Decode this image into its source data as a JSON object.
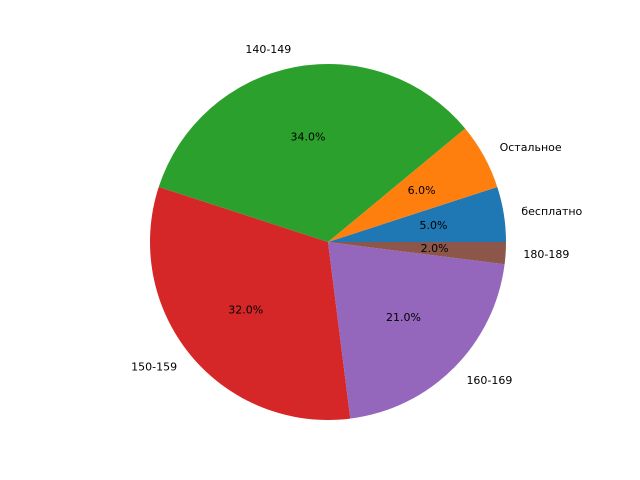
{
  "chart_data": {
    "type": "pie",
    "title": "",
    "start_angle_deg": 0,
    "direction": "counterclockwise",
    "slices": [
      {
        "label": "бесплатно",
        "value": 5.0,
        "pct_label": "5.0%",
        "color": "#1f77b4"
      },
      {
        "label": "Остальное",
        "value": 6.0,
        "pct_label": "6.0%",
        "color": "#ff7f0e"
      },
      {
        "label": "140-149",
        "value": 34.0,
        "pct_label": "34.0%",
        "color": "#2ca02c"
      },
      {
        "label": "150-159",
        "value": 32.0,
        "pct_label": "32.0%",
        "color": "#d62728"
      },
      {
        "label": "160-169",
        "value": 21.0,
        "pct_label": "21.0%",
        "color": "#9467bd"
      },
      {
        "label": "180-189",
        "value": 2.0,
        "pct_label": "2.0%",
        "color": "#8c564b"
      }
    ]
  }
}
